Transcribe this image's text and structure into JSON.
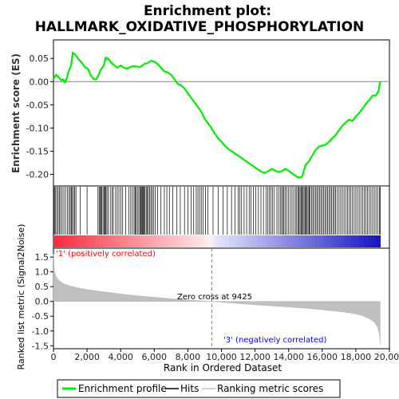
{
  "chart_data": {
    "type": "line",
    "title_line1": "Enrichment plot:",
    "title_line2": "HALLMARK_OXIDATIVE_PHOSPHORYLATION",
    "top_panel": {
      "ylabel": "Enrichment score (ES)",
      "ylim": [
        -0.225,
        0.09
      ],
      "yticks": [
        0.05,
        0.0,
        -0.05,
        -0.1,
        -0.15,
        -0.2
      ],
      "ytick_labels": [
        "0.05",
        "0.00",
        "-0.05",
        "-0.10",
        "-0.15",
        "-0.20"
      ],
      "series": [
        {
          "name": "Enrichment profile",
          "color": "#00ee00",
          "x": [
            0,
            150,
            300,
            450,
            550,
            700,
            800,
            900,
            1000,
            1050,
            1150,
            1300,
            1500,
            1700,
            1900,
            2050,
            2200,
            2400,
            2550,
            2700,
            2800,
            2900,
            3000,
            3100,
            3300,
            3400,
            3600,
            3800,
            4000,
            4200,
            4400,
            4600,
            4800,
            5000,
            5200,
            5400,
            5600,
            5800,
            6000,
            6200,
            6400,
            6600,
            6800,
            7000,
            7200,
            7400,
            7600,
            7800,
            8000,
            8200,
            8400,
            8600,
            8800,
            9000,
            9200,
            9400,
            9600,
            9800,
            10000,
            10200,
            10400,
            10600,
            10800,
            11000,
            11200,
            11400,
            11600,
            11800,
            12000,
            12200,
            12400,
            12600,
            12800,
            13000,
            13200,
            13400,
            13600,
            13800,
            14000,
            14200,
            14400,
            14600,
            14800,
            15000,
            15200,
            15400,
            15600,
            15800,
            16000,
            16200,
            16400,
            16600,
            16800,
            17000,
            17200,
            17400,
            17600,
            17800,
            18000,
            18200,
            18400,
            18600,
            18800,
            19000,
            19200,
            19350,
            19450
          ],
          "y": [
            0.005,
            0.015,
            0.01,
            0.003,
            0.005,
            -0.002,
            0.008,
            0.022,
            0.03,
            0.035,
            0.063,
            0.058,
            0.048,
            0.04,
            0.03,
            0.028,
            0.015,
            0.005,
            0.005,
            0.015,
            0.025,
            0.03,
            0.035,
            0.052,
            0.048,
            0.042,
            0.036,
            0.03,
            0.035,
            0.03,
            0.028,
            0.032,
            0.033,
            0.032,
            0.032,
            0.038,
            0.04,
            0.045,
            0.043,
            0.038,
            0.03,
            0.022,
            0.02,
            0.015,
            0.005,
            -0.005,
            -0.008,
            -0.015,
            -0.025,
            -0.035,
            -0.045,
            -0.055,
            -0.065,
            -0.08,
            -0.09,
            -0.1,
            -0.112,
            -0.122,
            -0.13,
            -0.138,
            -0.145,
            -0.15,
            -0.155,
            -0.16,
            -0.165,
            -0.17,
            -0.175,
            -0.18,
            -0.185,
            -0.19,
            -0.195,
            -0.197,
            -0.193,
            -0.188,
            -0.192,
            -0.195,
            -0.193,
            -0.188,
            -0.192,
            -0.198,
            -0.203,
            -0.207,
            -0.205,
            -0.18,
            -0.172,
            -0.16,
            -0.148,
            -0.14,
            -0.138,
            -0.136,
            -0.13,
            -0.122,
            -0.115,
            -0.105,
            -0.095,
            -0.088,
            -0.082,
            -0.085,
            -0.075,
            -0.068,
            -0.058,
            -0.048,
            -0.04,
            -0.03,
            -0.03,
            -0.02,
            0.0
          ]
        }
      ]
    },
    "hits_panel": {
      "name": "Hits",
      "hit_ranks": [
        20,
        60,
        130,
        200,
        280,
        350,
        430,
        520,
        620,
        720,
        830,
        930,
        1000,
        1060,
        1120,
        1200,
        1270,
        1340,
        1600,
        2000,
        2650,
        2720,
        2780,
        2840,
        2880,
        2950,
        3010,
        3060,
        3120,
        3180,
        3260,
        3380,
        3480,
        3560,
        3700,
        3800,
        3900,
        4020,
        4120,
        4300,
        4480,
        4600,
        4700,
        4800,
        4860,
        4920,
        5000,
        5080,
        5150,
        5200,
        5260,
        5300,
        5350,
        5400,
        5450,
        5520,
        5580,
        5650,
        5720,
        5800,
        5880,
        5950,
        6050,
        6200,
        6400,
        6600,
        6750,
        6900,
        7100,
        7350,
        7550,
        7800,
        8000,
        8200,
        8350,
        8500,
        8600,
        8700,
        8800,
        8900,
        9050,
        9200,
        9500,
        9800,
        10100,
        10350,
        10600,
        10800,
        11000,
        11100,
        11200,
        11350,
        11500,
        11650,
        11750,
        11900,
        12050,
        12200,
        12350,
        12500,
        12650,
        12750,
        12850,
        12950,
        13050,
        13150,
        13300,
        13400,
        13500,
        13580,
        13650,
        13720,
        13800,
        13900,
        14000,
        14100,
        14200,
        14300,
        14400,
        14480,
        14560,
        14620,
        14680,
        14740,
        14800,
        14860,
        14920,
        14980,
        15040,
        15100,
        15160,
        15220,
        15280,
        15360,
        15440,
        15520,
        15600,
        15680,
        15760,
        15840,
        15920,
        16000,
        16080,
        16160,
        16240,
        16320,
        16400,
        16480,
        16560,
        16640,
        16720,
        16800,
        16900,
        17000,
        17100,
        17200,
        17300,
        17400,
        17500,
        17600,
        17700,
        17800,
        17900,
        18000,
        18100,
        18200,
        18300,
        18400,
        18500,
        18600,
        18700,
        18800,
        18900,
        19000,
        19100,
        19200,
        19300,
        19400,
        19450
      ]
    },
    "ranking_panel": {
      "name": "Ranking metric scores",
      "ylabel": "Ranked list metric (Signal2Noise)",
      "ylim": [
        -1.6,
        1.8
      ],
      "yticks": [
        1.5,
        1.0,
        0.5,
        0.0,
        -0.5,
        -1.0,
        -1.5
      ],
      "ytick_labels": [
        "1.5",
        "1.0",
        "0.5",
        "0.0",
        "-0.5",
        "-1.0",
        "-1.5"
      ],
      "x": [
        0,
        50,
        150,
        300,
        600,
        1000,
        1500,
        2000,
        3000,
        4000,
        5000,
        6000,
        7000,
        8000,
        9000,
        9425,
        10000,
        11000,
        12000,
        13000,
        14000,
        15000,
        16000,
        17000,
        17800,
        18400,
        18800,
        19100,
        19300,
        19400,
        19450
      ],
      "y": [
        1.6,
        1.0,
        0.85,
        0.72,
        0.6,
        0.52,
        0.45,
        0.4,
        0.32,
        0.25,
        0.19,
        0.14,
        0.09,
        0.05,
        0.01,
        0.0,
        -0.03,
        -0.07,
        -0.11,
        -0.15,
        -0.19,
        -0.23,
        -0.28,
        -0.34,
        -0.4,
        -0.48,
        -0.58,
        -0.7,
        -0.88,
        -1.1,
        -1.45
      ],
      "label_pos": "'1' (positively correlated)",
      "label_neg": "'3' (negatively correlated)",
      "zero_cross_label": "Zero cross at 9425",
      "zero_cross_rank": 9425
    },
    "xaxis": {
      "xlabel": "Rank in Ordered Dataset",
      "xlim": [
        0,
        20000
      ],
      "xticks": [
        0,
        2000,
        4000,
        6000,
        8000,
        10000,
        12000,
        14000,
        16000,
        18000,
        20000
      ],
      "xtick_labels": [
        "0",
        "2,000",
        "4,000",
        "6,000",
        "8,000",
        "10,000",
        "12,000",
        "14,000",
        "16,000",
        "18,000",
        "20,000"
      ],
      "n_genes": 19450
    },
    "legend": {
      "placement": "bottom",
      "entries": [
        "Enrichment profile",
        "Hits",
        "Ranking metric scores"
      ]
    },
    "colors": {
      "es_line": "#00ee00",
      "hits": "#000000",
      "ranking_fill": "#c0c0c0",
      "pos_label": "#ff0000",
      "neg_label": "#0000ff",
      "zero_line": "#808080"
    }
  }
}
